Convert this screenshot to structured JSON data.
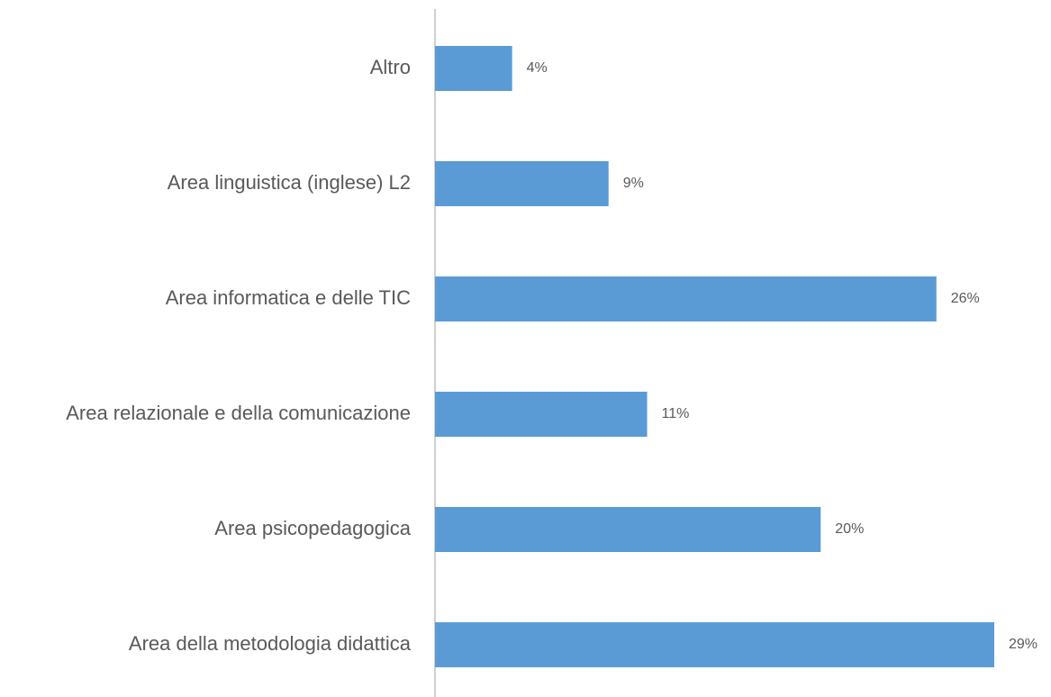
{
  "chart_data": {
    "type": "bar",
    "orientation": "horizontal",
    "categories": [
      "Altro",
      "Area linguistica (inglese) L2",
      "Area informatica e delle TIC",
      "Area relazionale e della comunicazione",
      "Area psicopedagogica",
      "Area della metodologia didattica"
    ],
    "values": [
      4,
      9,
      26,
      11,
      20,
      29
    ],
    "value_labels": [
      "4%",
      "9%",
      "26%",
      "11%",
      "20%",
      "29%"
    ],
    "color": "#5b9bd5"
  }
}
